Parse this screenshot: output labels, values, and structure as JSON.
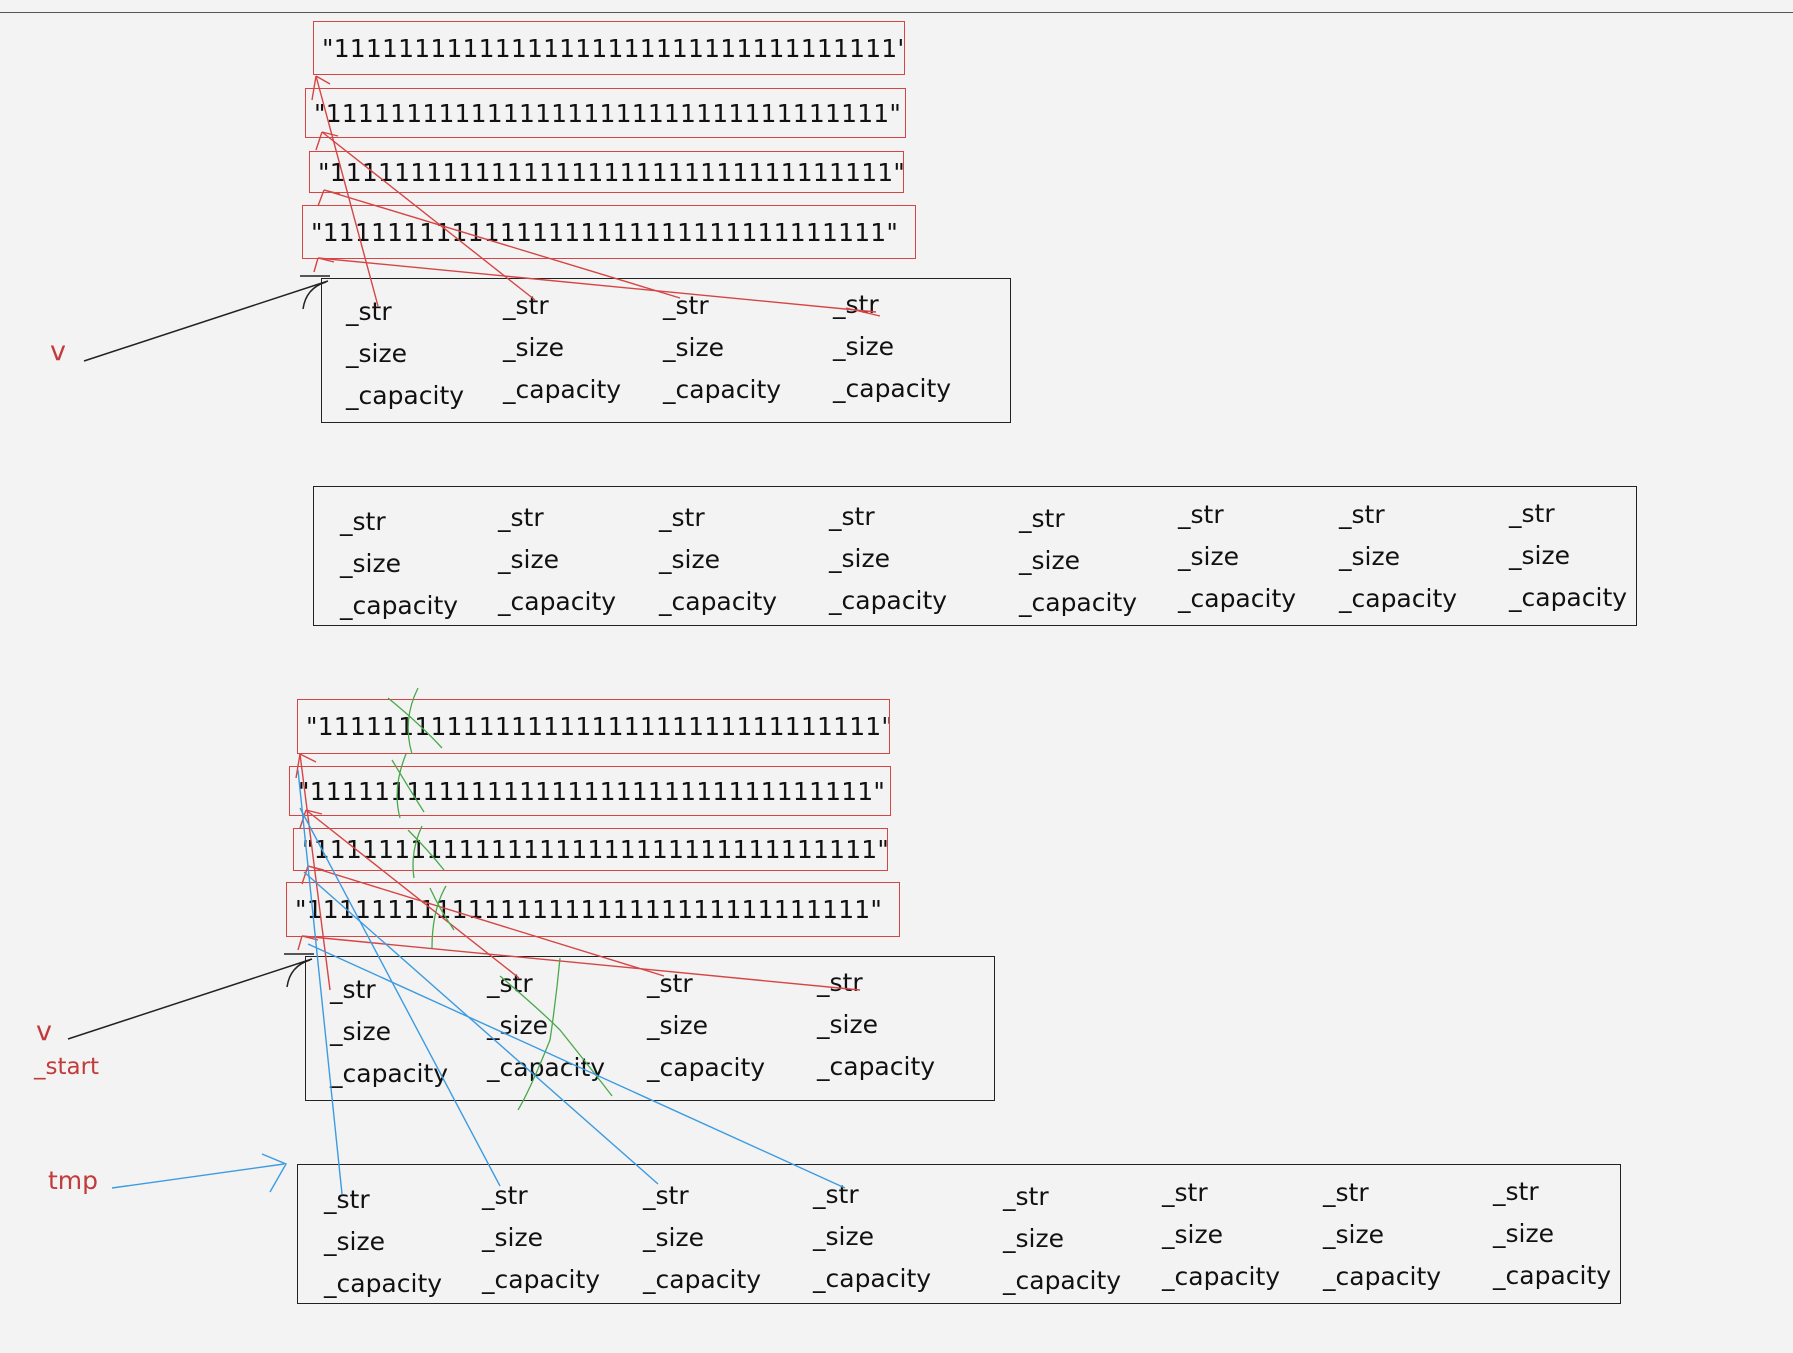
{
  "strings": {
    "top": [
      "\"11111111111111111111111111111111111\"",
      "\"11111111111111111111111111111111111\"",
      "\"11111111111111111111111111111111111\"",
      "\"11111111111111111111111111111111111\""
    ],
    "bottom": [
      "\"11111111111111111111111111111111111\"",
      "\"11111111111111111111111111111111111\"",
      "\"11111111111111111111111111111111111\"",
      "\"11111111111111111111111111111111111\""
    ]
  },
  "fields": {
    "str": "_str",
    "size": "_size",
    "capacity": "_capacity"
  },
  "labels": {
    "v_top": "v",
    "v_bottom": "v",
    "start": "_start",
    "tmp": "tmp"
  },
  "colors": {
    "string_box": "#d64545",
    "pointer_red": "#d64545",
    "pointer_blue": "#3d9be0",
    "cross_green": "#49a84a",
    "label": "#c23b3b",
    "box_border": "#222222"
  }
}
